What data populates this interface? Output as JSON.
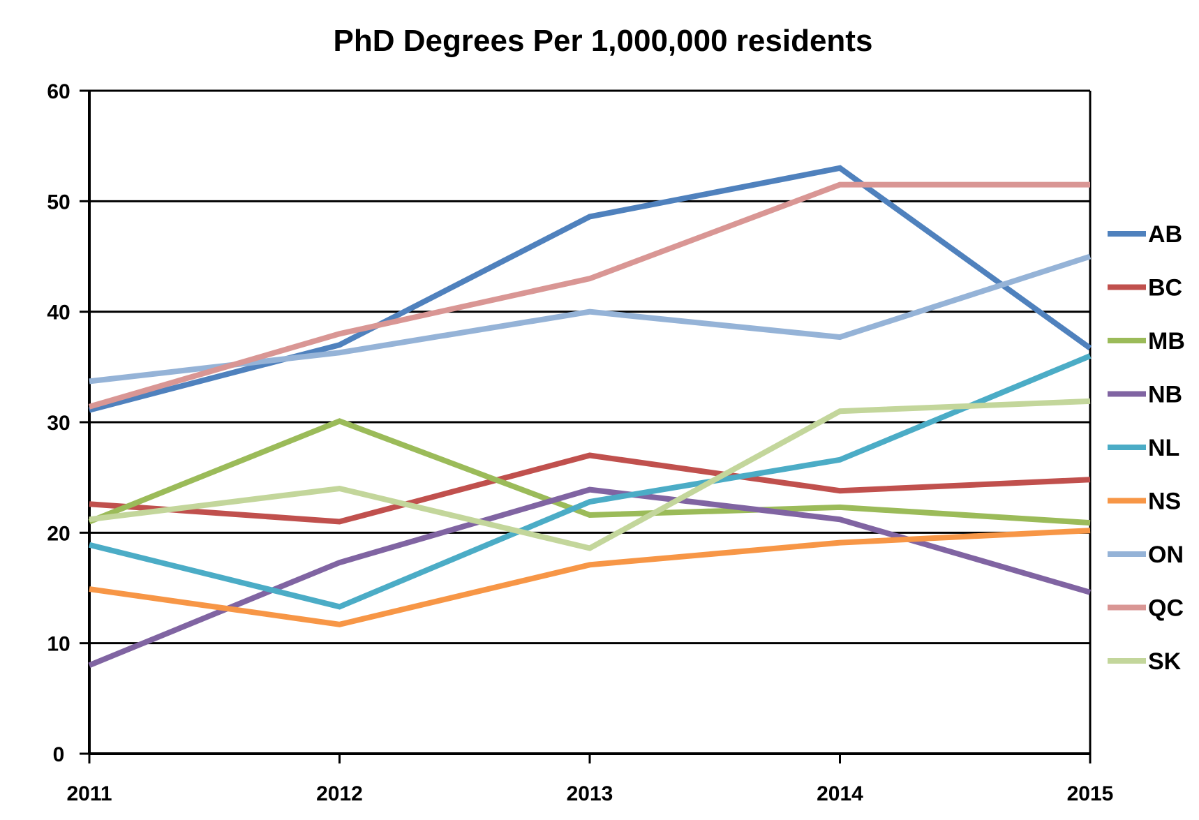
{
  "chart_data": {
    "type": "line",
    "title": "PhD Degrees Per 1,000,000 residents",
    "xlabel": "",
    "ylabel": "",
    "categories": [
      "2011",
      "2012",
      "2013",
      "2014",
      "2015"
    ],
    "ylim": [
      0,
      60
    ],
    "yticks": [
      0,
      10,
      20,
      30,
      40,
      50,
      60
    ],
    "grid": "horizontal major gridlines",
    "legend_position": "right",
    "series": [
      {
        "name": "AB",
        "color": "#4F81BD",
        "values": [
          31.1,
          37.0,
          48.6,
          53.0,
          36.7
        ]
      },
      {
        "name": "BC",
        "color": "#C0504D",
        "values": [
          22.6,
          21.0,
          27.0,
          23.8,
          24.8
        ]
      },
      {
        "name": "MB",
        "color": "#9BBB59",
        "values": [
          21.0,
          30.1,
          21.6,
          22.3,
          20.9
        ]
      },
      {
        "name": "NB",
        "color": "#8064A2",
        "values": [
          8.0,
          17.3,
          23.9,
          21.2,
          14.6
        ]
      },
      {
        "name": "NL",
        "color": "#4BACC6",
        "values": [
          18.9,
          13.3,
          22.8,
          26.6,
          36.0
        ]
      },
      {
        "name": "NS",
        "color": "#F79646",
        "values": [
          14.9,
          11.7,
          17.1,
          19.1,
          20.2
        ]
      },
      {
        "name": "ON",
        "color": "#95B3D7",
        "values": [
          33.7,
          36.3,
          40.0,
          37.7,
          45.0
        ]
      },
      {
        "name": "QC",
        "color": "#D99694",
        "values": [
          31.4,
          38.0,
          43.0,
          51.5,
          51.5
        ]
      },
      {
        "name": "SK",
        "color": "#C3D69B",
        "values": [
          21.2,
          24.0,
          18.6,
          31.0,
          31.9
        ]
      }
    ]
  }
}
